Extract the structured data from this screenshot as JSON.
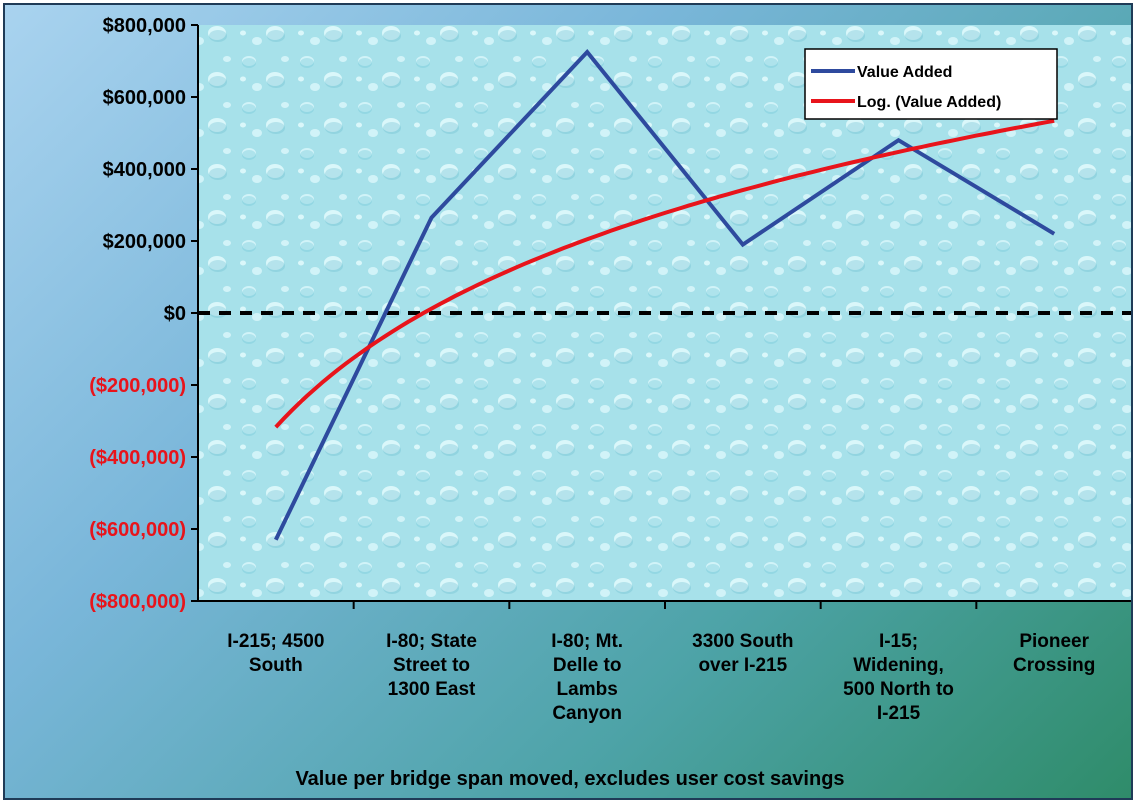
{
  "chart_data": {
    "type": "line",
    "categories": [
      [
        "I-215; 4500",
        "South"
      ],
      [
        "I-80; State",
        "Street to",
        "1300 East"
      ],
      [
        "I-80; Mt.",
        "Delle to",
        "Lambs",
        "Canyon"
      ],
      [
        "3300 South",
        "over I-215"
      ],
      [
        "I-15;",
        "Widening,",
        "500 North to",
        "I-215"
      ],
      [
        "Pioneer",
        "Crossing"
      ]
    ],
    "series": [
      {
        "name": "Value Added",
        "color": "#2e4a9e",
        "values": [
          -630000,
          265000,
          725000,
          190000,
          480000,
          220000
        ]
      },
      {
        "name": "Log. (Value Added)",
        "color": "#e8141b",
        "trendline": "logarithmic",
        "values": [
          -317000,
          12000,
          204000,
          341000,
          447000,
          534000
        ]
      }
    ],
    "ylim": [
      -800000,
      800000
    ],
    "yticks": [
      800000,
      600000,
      400000,
      200000,
      0,
      -200000,
      -400000,
      -600000,
      -800000
    ],
    "ytick_labels": [
      "$800,000",
      "$600,000",
      "$400,000",
      "$200,000",
      "$0",
      "($200,000)",
      "($400,000)",
      "($600,000)",
      "($800,000)"
    ],
    "negative_label_color": "#e8141b",
    "positive_label_color": "#000000",
    "zero_line": "dashed",
    "legend_position": "top-right",
    "caption": "Value per bridge span moved, excludes user cost savings"
  }
}
